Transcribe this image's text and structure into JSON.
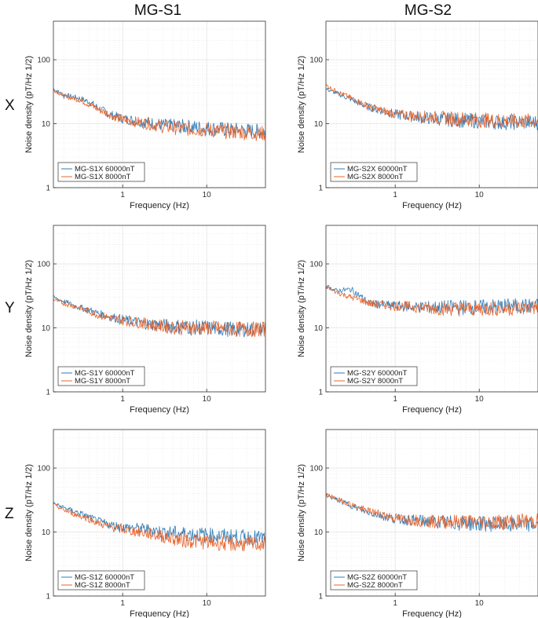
{
  "figure": {
    "column_titles": [
      "MG-S1",
      "MG-S2"
    ],
    "row_labels": [
      "X",
      "Y",
      "Z"
    ]
  },
  "colors": {
    "series_60000": "#2E7BB8",
    "series_8000": "#E8642C",
    "grid": "#e6e6e6",
    "axis": "#333333"
  },
  "chart_data": [
    {
      "type": "line",
      "row": "X",
      "column": "MG-S1",
      "xscale": "log",
      "yscale": "log",
      "xlabel": "Frequency (Hz)",
      "ylabel": "Noise density (pT/Hz 1/2)",
      "xlim": [
        0.15,
        50
      ],
      "ylim": [
        1,
        400
      ],
      "xticks": [
        {
          "value": 1,
          "label": "1"
        },
        {
          "value": 10,
          "label": "10"
        }
      ],
      "yticks": [
        {
          "value": 1,
          "label": "1"
        },
        {
          "value": 10,
          "label": "10"
        },
        {
          "value": 100,
          "label": "100"
        }
      ],
      "legend_position": "bottom-left",
      "series": [
        {
          "name": "MG-S1X 60000nT",
          "color": "#2E7BB8",
          "x": [
            0.15,
            0.2,
            0.3,
            0.4,
            0.5,
            0.7,
            1,
            2,
            3,
            5,
            10,
            20,
            50
          ],
          "y": [
            35,
            28,
            25,
            22,
            18,
            14,
            12,
            10.5,
            9.5,
            9,
            8.5,
            8,
            7.5
          ]
        },
        {
          "name": "MG-S1X 8000nT",
          "color": "#E8642C",
          "x": [
            0.15,
            0.2,
            0.3,
            0.4,
            0.5,
            0.7,
            1,
            2,
            3,
            5,
            10,
            20,
            50
          ],
          "y": [
            34,
            27,
            24,
            20,
            17,
            14,
            11.5,
            10,
            9,
            8.5,
            8,
            7.5,
            7
          ]
        }
      ]
    },
    {
      "type": "line",
      "row": "X",
      "column": "MG-S2",
      "xscale": "log",
      "yscale": "log",
      "xlabel": "Frequency (Hz)",
      "ylabel": "Noise density (pT/Hz 1/2)",
      "xlim": [
        0.15,
        50
      ],
      "ylim": [
        1,
        400
      ],
      "xticks": [
        {
          "value": 1,
          "label": "1"
        },
        {
          "value": 10,
          "label": "10"
        }
      ],
      "yticks": [
        {
          "value": 1,
          "label": "1"
        },
        {
          "value": 10,
          "label": "10"
        },
        {
          "value": 100,
          "label": "100"
        }
      ],
      "legend_position": "bottom-left",
      "series": [
        {
          "name": "MG-S2X 60000nT",
          "color": "#2E7BB8",
          "x": [
            0.15,
            0.2,
            0.3,
            0.4,
            0.5,
            0.7,
            1,
            2,
            3,
            5,
            10,
            20,
            50
          ],
          "y": [
            35,
            30,
            24,
            20,
            18,
            16,
            14,
            12.5,
            12,
            11.5,
            11,
            10.5,
            10.5
          ]
        },
        {
          "name": "MG-S2X 8000nT",
          "color": "#E8642C",
          "x": [
            0.15,
            0.2,
            0.3,
            0.4,
            0.5,
            0.7,
            1,
            2,
            3,
            5,
            10,
            20,
            50
          ],
          "y": [
            40,
            32,
            25,
            21,
            18,
            16,
            14,
            13,
            12.5,
            12,
            11.5,
            11,
            11
          ]
        }
      ]
    },
    {
      "type": "line",
      "row": "Y",
      "column": "MG-S1",
      "xscale": "log",
      "yscale": "log",
      "xlabel": "Frequency (Hz)",
      "ylabel": "Noise density (pT/Hz 1/2)",
      "xlim": [
        0.15,
        50
      ],
      "ylim": [
        1,
        400
      ],
      "xticks": [
        {
          "value": 1,
          "label": "1"
        },
        {
          "value": 10,
          "label": "10"
        }
      ],
      "yticks": [
        {
          "value": 1,
          "label": "1"
        },
        {
          "value": 10,
          "label": "10"
        },
        {
          "value": 100,
          "label": "100"
        }
      ],
      "legend_position": "bottom-left",
      "series": [
        {
          "name": "MG-S1Y 60000nT",
          "color": "#2E7BB8",
          "x": [
            0.15,
            0.2,
            0.3,
            0.4,
            0.5,
            0.7,
            1,
            2,
            3,
            5,
            10,
            20,
            50
          ],
          "y": [
            30,
            26,
            21,
            19,
            17,
            15,
            13.5,
            11.5,
            11,
            10.5,
            10,
            9.5,
            9.5
          ]
        },
        {
          "name": "MG-S1Y 8000nT",
          "color": "#E8642C",
          "x": [
            0.15,
            0.2,
            0.3,
            0.4,
            0.5,
            0.7,
            1,
            2,
            3,
            5,
            10,
            20,
            50
          ],
          "y": [
            28,
            24,
            21,
            18,
            16,
            14.5,
            13,
            11.5,
            10.5,
            10,
            10,
            9.5,
            9.5
          ]
        }
      ]
    },
    {
      "type": "line",
      "row": "Y",
      "column": "MG-S2",
      "xscale": "log",
      "yscale": "log",
      "xlabel": "Frequency (Hz)",
      "ylabel": "Noise density (pT/Hz 1/2)",
      "xlim": [
        0.15,
        50
      ],
      "ylim": [
        1,
        400
      ],
      "xticks": [
        {
          "value": 1,
          "label": "1"
        },
        {
          "value": 10,
          "label": "10"
        }
      ],
      "yticks": [
        {
          "value": 1,
          "label": "1"
        },
        {
          "value": 10,
          "label": "10"
        },
        {
          "value": 100,
          "label": "100"
        }
      ],
      "legend_position": "bottom-left",
      "series": [
        {
          "name": "MG-S2Y 60000nT",
          "color": "#2E7BB8",
          "x": [
            0.15,
            0.2,
            0.3,
            0.4,
            0.5,
            0.7,
            1,
            2,
            3,
            5,
            10,
            20,
            50
          ],
          "y": [
            45,
            38,
            40,
            30,
            24,
            23,
            22,
            21,
            21,
            21,
            21,
            22,
            22
          ]
        },
        {
          "name": "MG-S2Y 8000nT",
          "color": "#E8642C",
          "x": [
            0.15,
            0.2,
            0.3,
            0.4,
            0.5,
            0.7,
            1,
            2,
            3,
            5,
            10,
            20,
            50
          ],
          "y": [
            44,
            36,
            30,
            27,
            24,
            23,
            22,
            21,
            20,
            20,
            20,
            20,
            21
          ]
        }
      ]
    },
    {
      "type": "line",
      "row": "Z",
      "column": "MG-S1",
      "xscale": "log",
      "yscale": "log",
      "xlabel": "Frequency (Hz)",
      "ylabel": "Noise density (pT/Hz 1/2)",
      "xlim": [
        0.15,
        50
      ],
      "ylim": [
        1,
        400
      ],
      "xticks": [
        {
          "value": 1,
          "label": "1"
        },
        {
          "value": 10,
          "label": "10"
        }
      ],
      "yticks": [
        {
          "value": 1,
          "label": "1"
        },
        {
          "value": 10,
          "label": "10"
        },
        {
          "value": 100,
          "label": "100"
        }
      ],
      "legend_position": "bottom-left",
      "series": [
        {
          "name": "MG-S1Z 60000nT",
          "color": "#2E7BB8",
          "x": [
            0.15,
            0.2,
            0.3,
            0.4,
            0.5,
            0.7,
            1,
            2,
            3,
            5,
            10,
            20,
            50
          ],
          "y": [
            28,
            24,
            20,
            17,
            15,
            13,
            12,
            11,
            10,
            9.5,
            9,
            8.5,
            8
          ]
        },
        {
          "name": "MG-S1Z 8000nT",
          "color": "#E8642C",
          "x": [
            0.15,
            0.2,
            0.3,
            0.4,
            0.5,
            0.7,
            1,
            2,
            3,
            5,
            10,
            20,
            50
          ],
          "y": [
            27,
            22,
            18,
            16,
            14,
            12,
            11,
            9.5,
            8.5,
            7.5,
            7,
            6.5,
            6.5
          ]
        }
      ]
    },
    {
      "type": "line",
      "row": "Z",
      "column": "MG-S2",
      "xscale": "log",
      "yscale": "log",
      "xlabel": "Frequency (Hz)",
      "ylabel": "Noise density (pT/Hz 1/2)",
      "xlim": [
        0.15,
        50
      ],
      "ylim": [
        1,
        400
      ],
      "xticks": [
        {
          "value": 1,
          "label": "1"
        },
        {
          "value": 10,
          "label": "10"
        }
      ],
      "yticks": [
        {
          "value": 1,
          "label": "1"
        },
        {
          "value": 10,
          "label": "10"
        },
        {
          "value": 100,
          "label": "100"
        }
      ],
      "legend_position": "bottom-left",
      "series": [
        {
          "name": "MG-S2Z 60000nT",
          "color": "#2E7BB8",
          "x": [
            0.15,
            0.2,
            0.3,
            0.4,
            0.5,
            0.7,
            1,
            2,
            3,
            5,
            10,
            20,
            50
          ],
          "y": [
            38,
            32,
            26,
            22,
            20,
            18,
            16,
            15,
            14.5,
            14,
            13.5,
            13,
            13
          ]
        },
        {
          "name": "MG-S2Z 8000nT",
          "color": "#E8642C",
          "x": [
            0.15,
            0.2,
            0.3,
            0.4,
            0.5,
            0.7,
            1,
            2,
            3,
            5,
            10,
            20,
            50
          ],
          "y": [
            39,
            33,
            27,
            23,
            21,
            19,
            16.5,
            15,
            14.5,
            14.5,
            14.5,
            14.5,
            15
          ]
        }
      ]
    }
  ]
}
